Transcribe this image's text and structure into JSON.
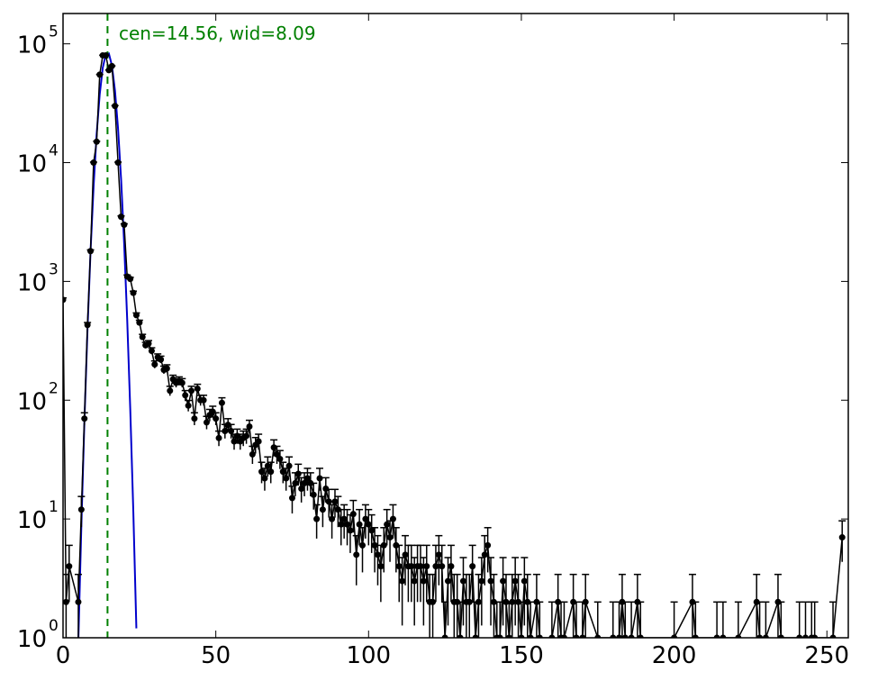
{
  "chart_data": {
    "type": "errorbar",
    "log_y": true,
    "annotation": "cen=14.56, wid=8.09",
    "annotation_color": "#008000",
    "vline": 14.56,
    "xlim": [
      0,
      257
    ],
    "xticks": [
      0,
      50,
      100,
      150,
      200,
      250
    ],
    "ylim": [
      1,
      180000
    ],
    "yticks": [
      {
        "value": 1,
        "label": "10",
        "exponent": "0"
      },
      {
        "value": 10,
        "label": "10",
        "exponent": "1"
      },
      {
        "value": 100,
        "label": "10",
        "exponent": "2"
      },
      {
        "value": 1000,
        "label": "10",
        "exponent": "3"
      },
      {
        "value": 10000,
        "label": "10",
        "exponent": "4"
      },
      {
        "value": 100000,
        "label": "10",
        "exponent": "5"
      }
    ],
    "series": [
      {
        "color": "#000000",
        "x": [
          0,
          1,
          2,
          5,
          6,
          7,
          8,
          9,
          10,
          11,
          12,
          13,
          14,
          15,
          16,
          17,
          18,
          19,
          20,
          21,
          22,
          23,
          24,
          25,
          26,
          27,
          28,
          29,
          30,
          31,
          32,
          33,
          34,
          35,
          36,
          37,
          38,
          39,
          40,
          41,
          42,
          43,
          44,
          45,
          46,
          47,
          48,
          49,
          50,
          51,
          52,
          53,
          54,
          55,
          56,
          57,
          58,
          59,
          60,
          61,
          62,
          63,
          64,
          65,
          66,
          67,
          68,
          69,
          70,
          71,
          72,
          73,
          74,
          75,
          76,
          77,
          78,
          79,
          80,
          81,
          82,
          83,
          84,
          85,
          86,
          87,
          88,
          89,
          90,
          91,
          92,
          93,
          94,
          95,
          96,
          97,
          98,
          99,
          100,
          101,
          102,
          103,
          104,
          105,
          106,
          107,
          108,
          109,
          110,
          111,
          112,
          113,
          114,
          115,
          116,
          117,
          118,
          119,
          120,
          121,
          122,
          123,
          124,
          125,
          126,
          127,
          128,
          129,
          130,
          131,
          132,
          133,
          134,
          135,
          136,
          137,
          138,
          139,
          140,
          141,
          142,
          143,
          144,
          145,
          146,
          147,
          148,
          149,
          150,
          151,
          152,
          153,
          155,
          156,
          160,
          162,
          163,
          164,
          167,
          168,
          170,
          171,
          175,
          180,
          182,
          183,
          184,
          186,
          188,
          189,
          200,
          206,
          207,
          214,
          216,
          221,
          227,
          228,
          230,
          234,
          235,
          241,
          243,
          245,
          246,
          252,
          255
        ],
        "values": [
          700,
          2,
          4,
          2,
          12,
          70,
          430,
          1800,
          10000,
          15000,
          55000,
          80000,
          80000,
          60000,
          65000,
          30000,
          10000,
          3500,
          3000,
          1100,
          1050,
          800,
          520,
          450,
          340,
          290,
          300,
          260,
          200,
          230,
          220,
          180,
          185,
          120,
          150,
          140,
          145,
          140,
          110,
          90,
          120,
          70,
          125,
          100,
          100,
          65,
          75,
          80,
          70,
          48,
          95,
          55,
          62,
          55,
          45,
          50,
          45,
          48,
          50,
          60,
          35,
          42,
          45,
          25,
          22,
          28,
          25,
          40,
          35,
          32,
          25,
          22,
          28,
          15,
          20,
          24,
          18,
          20,
          22,
          20,
          16,
          10,
          22,
          12,
          18,
          14,
          10,
          14,
          12,
          9,
          10,
          9,
          8,
          11,
          5,
          9,
          6,
          10,
          9,
          8,
          6,
          5,
          4,
          6,
          9,
          7,
          10,
          6,
          4,
          3,
          5,
          4,
          4,
          3,
          4,
          4,
          3,
          4,
          2,
          2,
          4,
          5,
          4,
          1,
          3,
          4,
          2,
          2,
          1,
          3,
          2,
          2,
          4,
          1,
          2,
          3,
          5,
          6,
          3,
          2,
          1,
          1,
          3,
          2,
          1,
          2,
          3,
          2,
          1,
          3,
          2,
          1,
          2,
          1,
          1,
          2,
          1,
          1,
          2,
          1,
          1,
          2,
          1,
          1,
          1,
          2,
          1,
          1,
          2,
          1,
          1,
          2,
          1,
          1,
          1,
          1,
          2,
          1,
          1,
          2,
          1,
          1,
          1,
          1,
          1,
          1,
          7
        ]
      }
    ],
    "fit": {
      "color": "#0000cc",
      "x": [
        5,
        6,
        7,
        8,
        9,
        10,
        11,
        12,
        13,
        14,
        15,
        16,
        17,
        18,
        19,
        20,
        21,
        22,
        23,
        24
      ],
      "values": [
        0.93,
        8.9,
        67,
        392,
        1790,
        6300,
        17400,
        37500,
        63000,
        81700,
        83000,
        65600,
        40400,
        19400,
        7240,
        2100,
        477,
        84,
        11.6,
        1.2
      ]
    }
  }
}
